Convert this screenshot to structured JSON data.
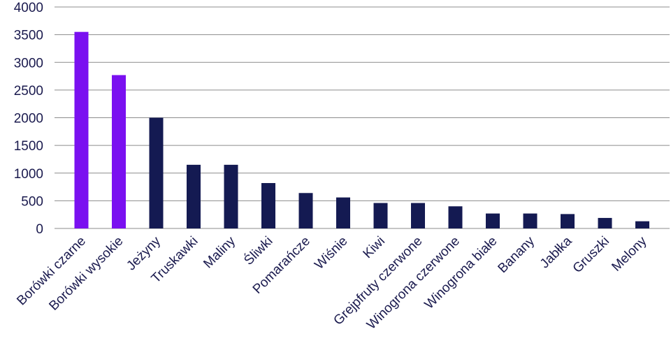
{
  "chart_data": {
    "type": "bar",
    "title": "",
    "xlabel": "",
    "ylabel": "",
    "ylim": [
      0,
      4000
    ],
    "yticks": [
      "0",
      "500",
      "1000",
      "1500",
      "2000",
      "2500",
      "3000",
      "3500",
      "4000"
    ],
    "grid": true,
    "categories": [
      "Borówki czarne",
      "Borówki wysokie",
      "Jeżyny",
      "Truskawki",
      "Maliny",
      "Śliwki",
      "Pomarańcze",
      "Wiśnie",
      "Kiwi",
      "Grejpfruty czerwone",
      "Winogrona czerwone",
      "Winogrona białe",
      "Banany",
      "Jabłka",
      "Gruszki",
      "Melony"
    ],
    "values": [
      3550,
      2770,
      2000,
      1150,
      1150,
      820,
      640,
      560,
      460,
      460,
      400,
      270,
      270,
      260,
      190,
      130
    ],
    "colors": {
      "highlight": "#7a10f0",
      "default": "#141a52",
      "grid": "#8c8c8c",
      "text": "#1a1a4e"
    },
    "highlight_count": 2
  }
}
